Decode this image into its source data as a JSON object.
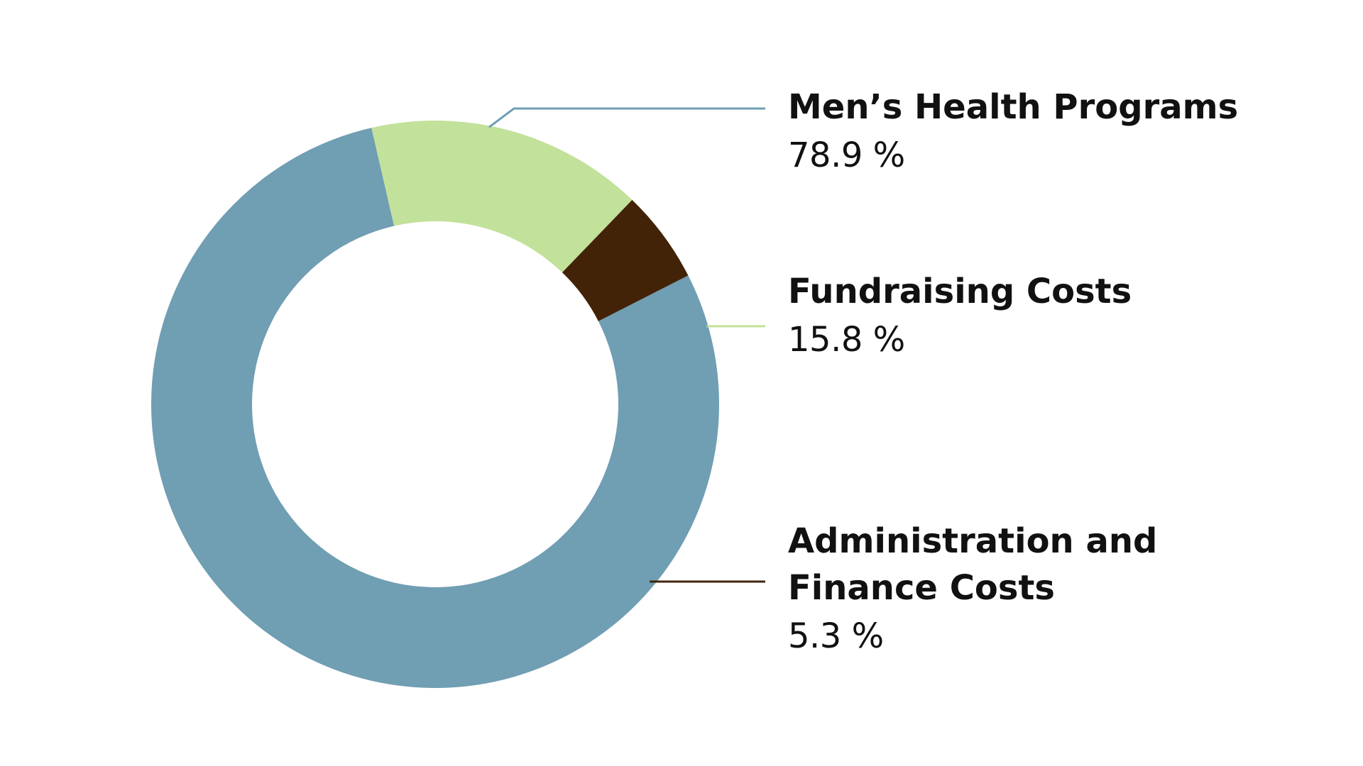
{
  "chart_data": {
    "type": "pie",
    "donut": true,
    "slices": [
      {
        "label": "Men’s Health Programs",
        "value": 78.9,
        "display": "78.9 %",
        "color": "#709eb3"
      },
      {
        "label": "Fundraising Costs",
        "value": 15.8,
        "display": "15.8 %",
        "color": "#c2e19a"
      },
      {
        "label": "Administration and\nFinance Costs",
        "value": 5.3,
        "display": "5.3 %",
        "color": "#422307"
      }
    ],
    "legend_placement": "right"
  }
}
